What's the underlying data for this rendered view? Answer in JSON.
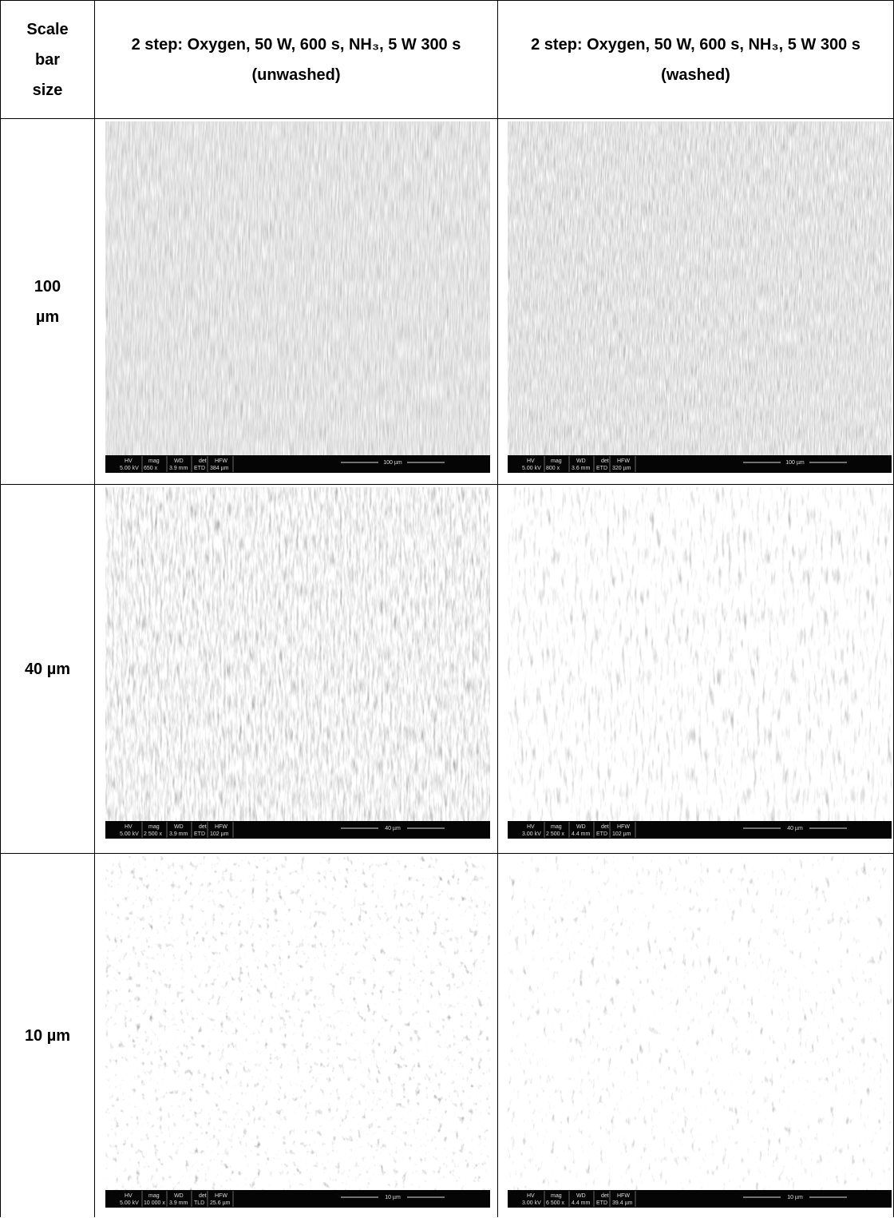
{
  "header": {
    "scale_col": "Scale bar size",
    "columns": [
      "2 step: Oxygen, 50 W, 600 s, NH₃, 5 W 300 s (unwashed)",
      "2 step: Oxygen, 50 W, 600 s, NH₃, 5 W 300 s (washed)"
    ]
  },
  "info_labels": [
    "HV",
    "mag",
    "WD",
    "det",
    "HFW"
  ],
  "rows": [
    {
      "label": "100 µm",
      "images": [
        {
          "info": [
            "5.00 kV",
            "650 x",
            "3.9 mm",
            "ETD",
            "384 µm"
          ],
          "scale": "100 µm"
        },
        {
          "info": [
            "5.00 kV",
            "800 x",
            "3.6 mm",
            "ETD",
            "320 µm"
          ],
          "scale": "100 µm"
        }
      ]
    },
    {
      "label": "40 µm",
      "images": [
        {
          "info": [
            "5.00 kV",
            "2 500 x",
            "3.9 mm",
            "ETD",
            "102 µm"
          ],
          "scale": "40 µm"
        },
        {
          "info": [
            "3.00 kV",
            "2 500 x",
            "4.4 mm",
            "ETD",
            "102 µm"
          ],
          "scale": "40 µm"
        }
      ]
    },
    {
      "label": "10 µm",
      "images": [
        {
          "info": [
            "5.00 kV",
            "10 000 x",
            "3.9 mm",
            "TLD",
            "25.6 µm"
          ],
          "scale": "10 µm"
        },
        {
          "info": [
            "3.00 kV",
            "6 500 x",
            "4.4 mm",
            "ETD",
            "39.4 µm"
          ],
          "scale": "10 µm"
        }
      ]
    }
  ]
}
